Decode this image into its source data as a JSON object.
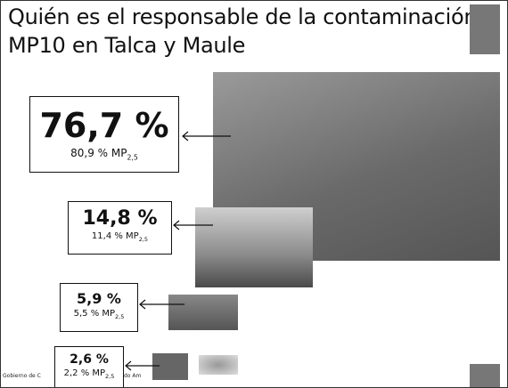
{
  "title": [
    "Quién es el responsable de la contaminación",
    "MP10 en Talca y Maule"
  ],
  "items": [
    {
      "value": "76,7 %",
      "sub": "80,9 % MP",
      "sub_index": "2,5"
    },
    {
      "value": "14,8 %",
      "sub": "11,4 % MP",
      "sub_index": "2,5"
    },
    {
      "value": "5,9 %",
      "sub": "5,5 % MP",
      "sub_index": "2,5"
    },
    {
      "value": "2,6 %",
      "sub": "2,2 % MP",
      "sub_index": "2,5"
    }
  ],
  "footer": [
    "Gobierno de C",
    "do Am"
  ]
}
